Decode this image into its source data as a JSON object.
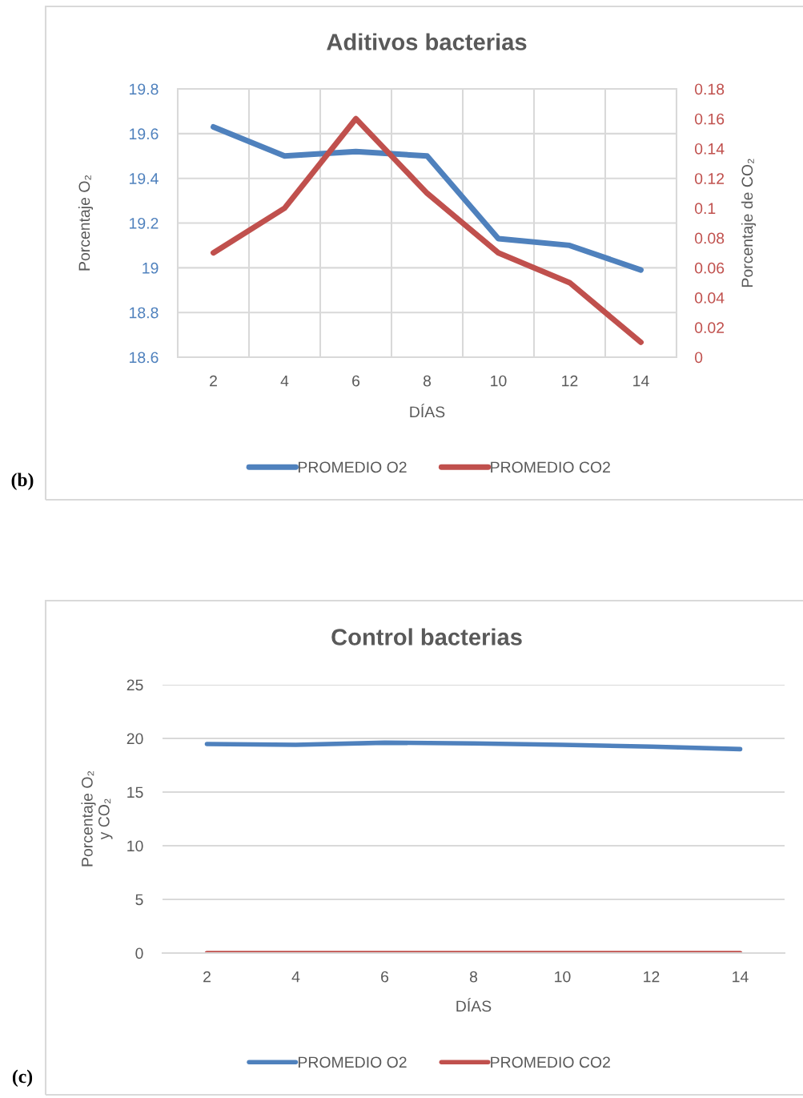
{
  "chart_data": [
    {
      "type": "line",
      "title": "Aditivos bacterias",
      "xlabel": "DÍAS",
      "ylabel": "Porcentaje O₂",
      "y2label": "Porcentaje de CO₂",
      "categories": [
        "2",
        "4",
        "6",
        "8",
        "10",
        "12",
        "14"
      ],
      "series": [
        {
          "name": "PROMEDIO O2",
          "color": "#4f81bd",
          "values": [
            19.63,
            19.5,
            19.52,
            19.5,
            19.13,
            19.1,
            18.99
          ]
        },
        {
          "name": "PROMEDIO CO2",
          "color": "#c0504d",
          "axis": "y2",
          "values": [
            0.07,
            0.1,
            0.16,
            0.11,
            0.07,
            0.05,
            0.01
          ]
        }
      ],
      "ylim": [
        18.6,
        19.8
      ],
      "yticks": [
        18.6,
        18.8,
        19,
        19.2,
        19.4,
        19.6,
        19.8
      ],
      "y2lim": [
        0,
        0.18
      ],
      "y2ticks": [
        0,
        0.02,
        0.04,
        0.06,
        0.08,
        0.1,
        0.12,
        0.14,
        0.16,
        0.18
      ],
      "grid": true,
      "legend": "bottom",
      "annotations": [
        "(b)"
      ]
    },
    {
      "type": "line",
      "title": "Control bacterias",
      "xlabel": "DÍAS",
      "ylabel": "Porcentaje O₂\ny CO₂",
      "categories": [
        "2",
        "4",
        "6",
        "8",
        "10",
        "12",
        "14"
      ],
      "series": [
        {
          "name": "PROMEDIO O2",
          "color": "#4f81bd",
          "values": [
            19.48,
            19.4,
            19.6,
            19.53,
            19.4,
            19.23,
            19.0
          ]
        },
        {
          "name": "PROMEDIO CO2",
          "color": "#c0504d",
          "values": [
            0,
            0,
            0,
            0,
            0,
            0,
            0
          ]
        }
      ],
      "ylim": [
        0,
        25
      ],
      "yticks": [
        0,
        5,
        10,
        15,
        20,
        25
      ],
      "grid": "y",
      "legend": "bottom",
      "annotations": [
        "(c)"
      ]
    }
  ]
}
